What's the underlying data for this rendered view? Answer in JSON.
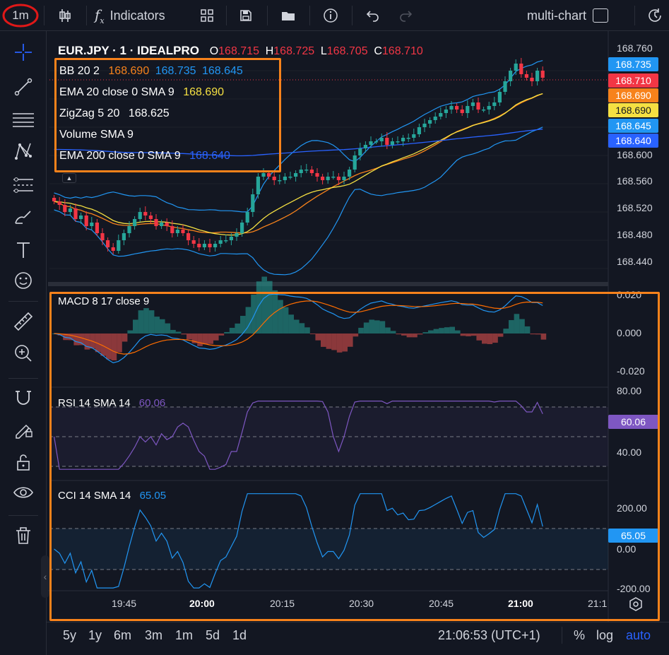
{
  "toolbar": {
    "interval": "1m",
    "indicators_label": "Indicators",
    "multichart_label": "multi-chart"
  },
  "symbol": {
    "title": "EUR.JPY · 1 · IDEALPRO",
    "o_label": "O",
    "o_value": "168.715",
    "h_label": "H",
    "h_value": "168.725",
    "l_label": "L",
    "l_value": "168.705",
    "c_label": "C",
    "c_value": "168.710"
  },
  "legend": [
    {
      "label": "BB 20 2",
      "values": [
        "168.690",
        "168.735",
        "168.645"
      ],
      "colors": [
        "#f7821b",
        "#2196f3",
        "#2196f3"
      ]
    },
    {
      "label": "EMA 20 close 0 SMA 9",
      "values": [
        "168.690"
      ],
      "colors": [
        "#f5e042"
      ]
    },
    {
      "label": "ZigZag 5 20",
      "values": [
        "168.625"
      ],
      "colors": [
        "#ffffff"
      ]
    },
    {
      "label": "Volume SMA 9",
      "values": [],
      "colors": []
    },
    {
      "label": "EMA 200 close 0 SMA 9",
      "values": [
        "168.640"
      ],
      "colors": [
        "#2962ff"
      ]
    }
  ],
  "price_axis": [
    "168.760",
    "168.720",
    "168.680",
    "168.640",
    "168.600",
    "168.560",
    "168.520",
    "168.480",
    "168.440"
  ],
  "price_pills": [
    {
      "value": "168.735",
      "color": "#2196f3",
      "text": "#ffffff"
    },
    {
      "value": "168.710",
      "color": "#f23645",
      "text": "#ffffff"
    },
    {
      "value": "168.690",
      "color": "#f7821b",
      "text": "#ffffff"
    },
    {
      "value": "168.690",
      "color": "#f5e042",
      "text": "#131722"
    },
    {
      "value": "168.645",
      "color": "#2196f3",
      "text": "#ffffff"
    },
    {
      "value": "168.640",
      "color": "#2962ff",
      "text": "#ffffff"
    }
  ],
  "macd": {
    "label": "MACD 8 17 close 9",
    "axis": [
      "0.020",
      "0.000",
      "-0.020"
    ]
  },
  "rsi": {
    "label": "RSI 14 SMA 14",
    "value": "60.06",
    "axis": [
      "80.00",
      "40.00"
    ],
    "pill": "60.06"
  },
  "cci": {
    "label": "CCI 14 SMA 14",
    "value": "65.05",
    "axis": [
      "200.00",
      "0.00",
      "-200.00"
    ],
    "pill": "65.05"
  },
  "time_axis": [
    "19:45",
    "20:00",
    "20:15",
    "20:30",
    "20:45",
    "21:00",
    "21:1"
  ],
  "bottom": {
    "ranges": [
      "5y",
      "1y",
      "6m",
      "3m",
      "1m",
      "5d",
      "1d"
    ],
    "clock": "21:06:53 (UTC+1)",
    "pct": "%",
    "log": "log",
    "auto": "auto"
  },
  "colors": {
    "up": "#26a69a",
    "down": "#f23645",
    "bb": "#2196f3",
    "ema20": "#f5e042",
    "ema200": "#2962ff",
    "highlight": "#f7821b",
    "rsi": "#7e57c2",
    "cci": "#2196f3"
  },
  "chart_data": {
    "type": "candlestick",
    "title": "EUR.JPY · 1 · IDEALPRO",
    "x_ticks": [
      "19:45",
      "20:00",
      "20:15",
      "20:30",
      "20:45",
      "21:00"
    ],
    "ylim": [
      168.42,
      168.77
    ],
    "last_ohlc": {
      "o": 168.715,
      "h": 168.725,
      "l": 168.705,
      "c": 168.71
    },
    "close": [
      168.535,
      168.53,
      168.52,
      168.525,
      168.51,
      168.515,
      168.5,
      168.505,
      168.49,
      168.48,
      168.47,
      168.465,
      168.48,
      168.49,
      168.5,
      168.51,
      168.52,
      168.515,
      168.51,
      168.5,
      168.505,
      168.5,
      168.49,
      168.495,
      168.49,
      168.48,
      168.475,
      168.47,
      168.475,
      168.47,
      168.475,
      168.48,
      168.48,
      168.485,
      168.49,
      168.505,
      168.52,
      168.545,
      168.57,
      168.575,
      168.57,
      168.565,
      168.565,
      168.57,
      168.57,
      168.575,
      168.58,
      168.58,
      168.575,
      168.57,
      168.565,
      168.57,
      168.57,
      168.565,
      168.57,
      168.58,
      168.6,
      168.61,
      168.615,
      168.62,
      168.62,
      168.625,
      168.615,
      168.62,
      168.62,
      168.625,
      168.625,
      168.63,
      168.64,
      168.645,
      168.65,
      168.655,
      168.66,
      168.665,
      168.67,
      168.665,
      168.66,
      168.67,
      168.675,
      168.665,
      168.665,
      168.67,
      168.675,
      168.69,
      168.705,
      168.72,
      168.73,
      168.715,
      168.71,
      168.705,
      168.72,
      168.71
    ]
  }
}
